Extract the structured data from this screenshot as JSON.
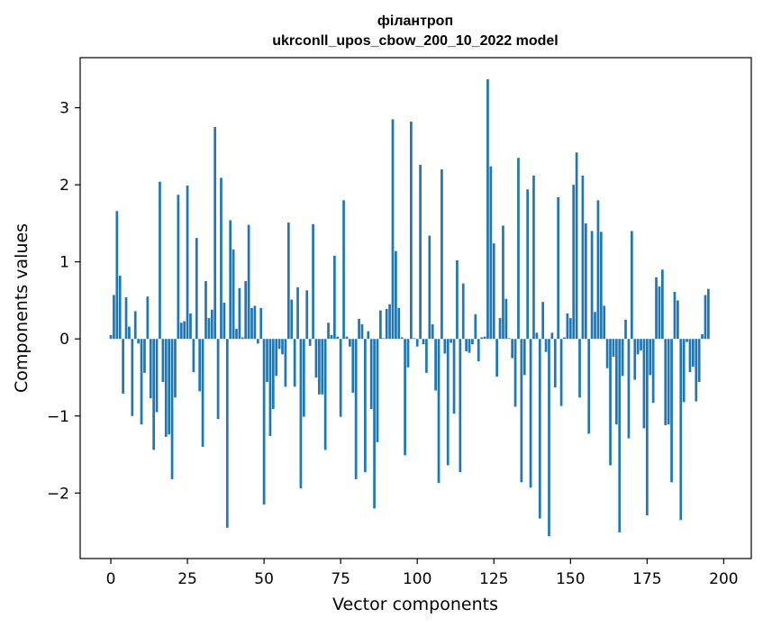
{
  "chart_data": {
    "type": "bar",
    "title": "філантроп",
    "subtitle": "ukrconll_upos_cbow_200_10_2022 model",
    "xlabel": "Vector components",
    "ylabel": "Components values",
    "xlim": [
      -10,
      209
    ],
    "ylim": [
      -2.85,
      3.65
    ],
    "xticks": [
      0,
      25,
      50,
      75,
      100,
      125,
      150,
      175,
      200
    ],
    "yticks": [
      -2,
      -1,
      0,
      1,
      2,
      3
    ],
    "ytick_labels": [
      "−2",
      "−1",
      "0",
      "1",
      "2",
      "3"
    ],
    "bar_color": "#1f77b4",
    "grid": false,
    "values": [
      0.05,
      0.57,
      1.66,
      0.82,
      -0.71,
      0.54,
      0.16,
      -1.0,
      0.36,
      -0.06,
      -1.11,
      -0.44,
      0.55,
      -0.77,
      -1.44,
      -0.95,
      2.04,
      -0.56,
      -1.27,
      -1.24,
      -1.82,
      -0.76,
      1.87,
      0.21,
      0.23,
      1.99,
      0.33,
      -0.43,
      1.31,
      -0.68,
      -1.4,
      0.75,
      0.27,
      0.38,
      2.75,
      -1.04,
      2.09,
      0.47,
      -2.45,
      1.54,
      1.16,
      0.13,
      0.66,
      0.02,
      0.75,
      1.48,
      0.4,
      0.43,
      -0.06,
      0.4,
      -2.15,
      -0.56,
      -1.26,
      -0.91,
      -0.48,
      -0.13,
      -0.2,
      -0.62,
      1.51,
      0.51,
      -0.62,
      0.67,
      -1.94,
      -1.01,
      0.63,
      -0.09,
      1.49,
      -0.5,
      -0.72,
      -0.72,
      -1.44,
      0.21,
      0.05,
      1.08,
      0.03,
      -1.01,
      1.8,
      0.03,
      -0.1,
      -0.7,
      -1.82,
      0.26,
      0.19,
      -1.73,
      0.1,
      -0.91,
      -2.2,
      -1.34,
      0.37,
      0.01,
      0.39,
      0.45,
      2.85,
      1.14,
      0.4,
      0.02,
      -1.51,
      -0.37,
      2.82,
      0.01,
      -0.1,
      2.26,
      -0.07,
      -0.44,
      1.34,
      0.19,
      -0.67,
      -1.87,
      2.2,
      -0.19,
      -1.64,
      -0.05,
      -0.97,
      1.02,
      -1.73,
      0.72,
      -0.16,
      -0.18,
      -0.07,
      0.32,
      -0.29,
      0.02,
      0.03,
      3.37,
      2.24,
      1.24,
      -0.49,
      0.27,
      1.47,
      0.52,
      0.01,
      -0.25,
      -0.88,
      2.35,
      -1.86,
      -0.47,
      1.94,
      -1.93,
      2.12,
      0.08,
      -2.33,
      0.48,
      -0.17,
      -2.56,
      0.08,
      -0.63,
      1.84,
      -0.87,
      0.02,
      0.33,
      0.27,
      2.0,
      2.42,
      -0.76,
      2.12,
      1.5,
      -1.23,
      1.4,
      0.35,
      1.8,
      1.39,
      0.43,
      -0.38,
      -1.64,
      -0.23,
      -1.11,
      -2.51,
      -0.48,
      0.25,
      -1.29,
      1.4,
      -0.53,
      -0.2,
      -0.15,
      -1.16,
      -2.29,
      -0.47,
      -0.83,
      0.8,
      0.68,
      0.9,
      -1.12,
      -1.11,
      -1.86,
      0.61,
      0.5,
      -2.35,
      -0.82,
      -0.04,
      -0.43,
      -0.36,
      -0.81,
      -0.56,
      0.06,
      0.57,
      0.65
    ]
  }
}
